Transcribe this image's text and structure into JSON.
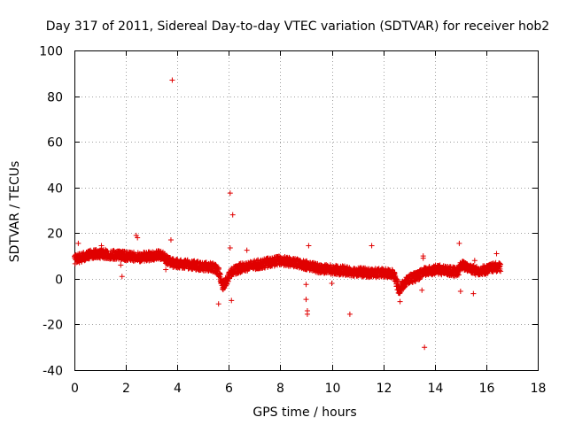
{
  "chart_data": {
    "type": "scatter",
    "title": "Day 317 of 2011, Sidereal Day-to-day VTEC variation (SDTVAR) for receiver hob2",
    "xlabel": "GPS time / hours",
    "ylabel": "SDTVAR / TECUs",
    "xlim": [
      0,
      18
    ],
    "ylim": [
      -40,
      100
    ],
    "xticks": [
      "0",
      "2",
      "4",
      "6",
      "8",
      "10",
      "12",
      "14",
      "16",
      "18"
    ],
    "yticks": [
      "-40",
      "-20",
      "0",
      "20",
      "40",
      "60",
      "80",
      "100"
    ],
    "grid": true,
    "marker": "+",
    "series_color": "#e00000",
    "series": [
      {
        "name": "SDTVAR",
        "trend_x": [
          0.0,
          0.3,
          0.6,
          1.0,
          1.5,
          2.0,
          2.5,
          3.0,
          3.4,
          3.6,
          3.8,
          4.2,
          4.6,
          5.0,
          5.4,
          5.6,
          5.75,
          5.9,
          6.1,
          6.5,
          7.0,
          7.5,
          8.0,
          8.5,
          9.0,
          9.5,
          10.0,
          10.5,
          11.0,
          11.5,
          12.0,
          12.4,
          12.6,
          12.8,
          13.0,
          13.3,
          13.6,
          14.0,
          14.5,
          14.9,
          15.0,
          15.3,
          15.6,
          16.0,
          16.3,
          16.55
        ],
        "trend_y": [
          8.5,
          9.5,
          10.5,
          11.0,
          10.5,
          10.0,
          9.5,
          10.0,
          10.5,
          8.0,
          7.0,
          6.5,
          6.0,
          5.5,
          5.0,
          3.0,
          -3.0,
          -1.0,
          3.0,
          5.0,
          6.0,
          7.0,
          8.0,
          7.0,
          6.0,
          4.5,
          4.0,
          3.5,
          3.0,
          2.5,
          2.5,
          2.0,
          -5.0,
          -2.0,
          0.0,
          1.0,
          3.0,
          4.0,
          3.5,
          3.0,
          6.0,
          5.0,
          3.5,
          4.0,
          5.0,
          5.0
        ],
        "outliers": [
          [
            0.15,
            15.5
          ],
          [
            1.05,
            14.5
          ],
          [
            1.8,
            6.0
          ],
          [
            1.85,
            1.0
          ],
          [
            2.4,
            19.0
          ],
          [
            2.45,
            18.0
          ],
          [
            3.55,
            4.0
          ],
          [
            3.75,
            17.0
          ],
          [
            3.8,
            87.0
          ],
          [
            5.2,
            3.5
          ],
          [
            5.6,
            -11.0
          ],
          [
            6.05,
            37.5
          ],
          [
            6.15,
            28.0
          ],
          [
            6.05,
            13.5
          ],
          [
            6.1,
            -9.5
          ],
          [
            6.7,
            12.5
          ],
          [
            7.5,
            9.0
          ],
          [
            9.0,
            -9.0
          ],
          [
            9.05,
            -14.0
          ],
          [
            9.05,
            -15.5
          ],
          [
            9.1,
            14.5
          ],
          [
            9.0,
            -2.5
          ],
          [
            10.0,
            -2.0
          ],
          [
            10.7,
            -15.5
          ],
          [
            11.55,
            14.5
          ],
          [
            12.65,
            -10.0
          ],
          [
            13.55,
            9.0
          ],
          [
            13.55,
            10.0
          ],
          [
            13.6,
            -30.0
          ],
          [
            14.95,
            15.5
          ],
          [
            15.0,
            -5.5
          ],
          [
            15.5,
            -6.5
          ],
          [
            15.55,
            8.0
          ],
          [
            16.4,
            11.0
          ],
          [
            14.2,
            6.0
          ],
          [
            13.5,
            -5.0
          ]
        ]
      }
    ]
  }
}
